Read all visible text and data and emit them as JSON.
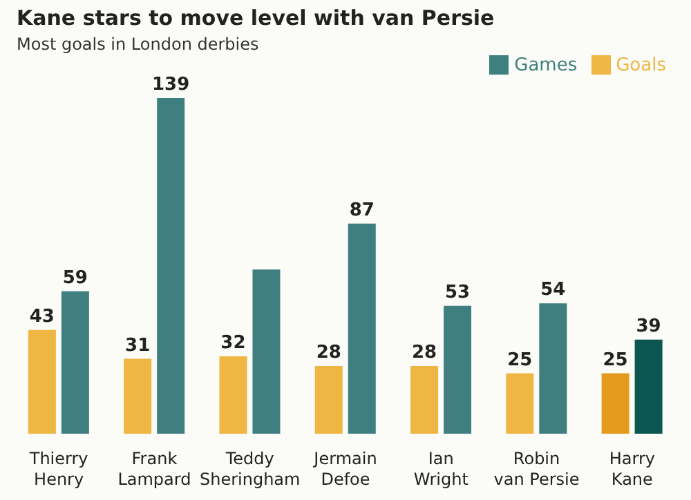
{
  "chart_data": {
    "type": "bar",
    "title": "Kane stars to move level with van Persie",
    "subtitle": "Most goals in London derbies",
    "categories": [
      "Thierry Henry",
      "Frank Lampard",
      "Teddy Sheringham",
      "Jermain Defoe",
      "Ian Wright",
      "Robin van Persie",
      "Harry Kane"
    ],
    "series": [
      {
        "name": "Goals",
        "color": "#f0b643",
        "colors": [
          "#f0b643",
          "#f0b643",
          "#f0b643",
          "#f0b643",
          "#f0b643",
          "#f0b643",
          "#e49a1c"
        ],
        "values": [
          43,
          31,
          32,
          28,
          28,
          25,
          25
        ],
        "value_labels": [
          "43",
          "31",
          "32",
          "28",
          "28",
          "25",
          "25"
        ]
      },
      {
        "name": "Games",
        "color": "#3f7f7f",
        "colors": [
          "#3f7f7f",
          "#3f7f7f",
          "#3f7f7f",
          "#3f7f7f",
          "#3f7f7f",
          "#3f7f7f",
          "#0b5650"
        ],
        "values": [
          59,
          139,
          68,
          87,
          53,
          54,
          39
        ],
        "value_labels": [
          "59",
          "139",
          null,
          "87",
          "53",
          "54",
          "39"
        ]
      }
    ],
    "legend": "top right"
  }
}
